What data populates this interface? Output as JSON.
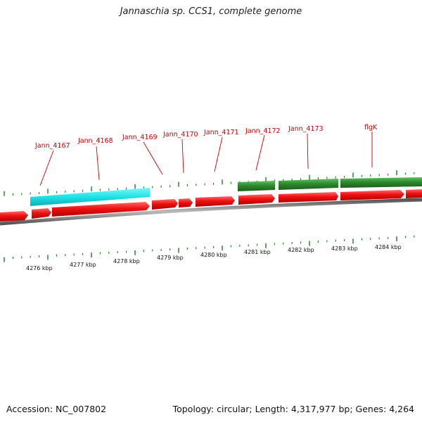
{
  "title": "Jannaschia sp. CCS1, complete genome",
  "footer": {
    "accession": "Accession: NC_007802",
    "summary": "Topology: circular; Length: 4,317,977 bp; Genes: 4,264"
  },
  "colors": {
    "forward_gene": "#ee1111",
    "reverse_gene": "#2e8b2e",
    "highlight_gene": "#1de3e8",
    "tick": "#1f7a1f",
    "backbone": "#888888",
    "label": "#cc0000"
  },
  "gene_labels": [
    "Jann_4167",
    "Jann_4168",
    "Jann_4169",
    "Jann_4170",
    "Jann_4171",
    "Jann_4172",
    "Jann_4173",
    "flgK"
  ],
  "kbp_labels": [
    "4276 kbp",
    "4277 kbp",
    "4278 kbp",
    "4279 kbp",
    "4280 kbp",
    "4281 kbp",
    "4282 kbp",
    "4283 kbp",
    "4284 kbp"
  ],
  "legend": []
}
